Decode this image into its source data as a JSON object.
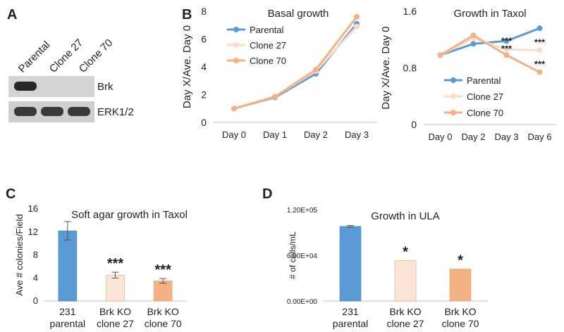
{
  "panels": {
    "A": "A",
    "B": "B",
    "C": "C",
    "D": "D"
  },
  "blot": {
    "lanes": [
      "Parental",
      "Clone 27",
      "Clone 70"
    ],
    "rows": [
      {
        "label": "Brk",
        "intensity": [
          1,
          0,
          0
        ]
      },
      {
        "label": "ERK1/2",
        "intensity": [
          1,
          1,
          1
        ]
      }
    ]
  },
  "colors": {
    "parental": "#5b9bd5",
    "clone27": "#f9dccb",
    "clone70": "#f4b183",
    "axis": "#bfbfbf",
    "ink": "#222222"
  },
  "chart_data": [
    {
      "id": "basal",
      "type": "line",
      "title": "Basal growth",
      "ylabel": "Day X/Ave. Day 0",
      "categories": [
        "Day 0",
        "Day 1",
        "Day 2",
        "Day 3"
      ],
      "ylim": [
        0,
        8
      ],
      "yticks": [
        0,
        2,
        4,
        6,
        8
      ],
      "ytick_labels": [
        "0",
        "2",
        "4",
        "6",
        "8"
      ],
      "series": [
        {
          "name": "Parental",
          "color": "#5b9bd5",
          "values": [
            1.0,
            1.8,
            3.5,
            7.1
          ]
        },
        {
          "name": "Clone 27",
          "color": "#f9dccb",
          "values": [
            1.0,
            1.85,
            3.7,
            6.9
          ]
        },
        {
          "name": "Clone 70",
          "color": "#f4b183",
          "values": [
            1.0,
            1.85,
            3.8,
            7.6
          ]
        }
      ],
      "legend": "top-left"
    },
    {
      "id": "taxol",
      "type": "line",
      "title": "Growth in Taxol",
      "ylabel": "Day X/Ave. Day 0",
      "categories": [
        "Day 0",
        "Day 2",
        "Day 3",
        "Day 6"
      ],
      "ylim": [
        0,
        1.6
      ],
      "yticks": [
        0,
        0.8,
        1.6
      ],
      "ytick_labels": [
        "0",
        "0.8",
        "1.6"
      ],
      "series": [
        {
          "name": "Parental",
          "color": "#5b9bd5",
          "values": [
            0.98,
            1.14,
            1.18,
            1.36
          ]
        },
        {
          "name": "Clone 27",
          "color": "#f9dccb",
          "values": [
            0.98,
            1.22,
            1.06,
            1.05
          ]
        },
        {
          "name": "Clone 70",
          "color": "#f4b183",
          "values": [
            0.98,
            1.26,
            0.98,
            0.74
          ]
        }
      ],
      "annotations": [
        {
          "text": "***",
          "category": 2,
          "y": 1.14
        },
        {
          "text": "***",
          "category": 2,
          "y": 1.03
        },
        {
          "text": "***",
          "category": 3,
          "y": 1.12
        },
        {
          "text": "***",
          "category": 3,
          "y": 0.81
        }
      ],
      "legend": "bottom-left"
    },
    {
      "id": "softagar",
      "type": "bar",
      "title": "Soft agar growth in Taxol",
      "ylabel": "Ave # colonies/Field",
      "categories": [
        "231 parental",
        "Brk KO clone 27",
        "Brk KO clone 70"
      ],
      "category_lines": [
        [
          "231",
          "parental"
        ],
        [
          "Brk KO",
          "clone 27"
        ],
        [
          "Brk KO",
          "clone 70"
        ]
      ],
      "values": [
        12.2,
        4.5,
        3.5
      ],
      "errors": [
        1.6,
        0.5,
        0.4
      ],
      "colors": [
        "#5b9bd5",
        "#fbe5d6",
        "#f4b183"
      ],
      "significance": [
        "",
        "***",
        "***"
      ],
      "ylim": [
        0,
        16
      ],
      "yticks": [
        0,
        4,
        8,
        12,
        16
      ],
      "ytick_labels": [
        "0",
        "4",
        "8",
        "12",
        "16"
      ]
    },
    {
      "id": "ula",
      "type": "bar",
      "title": "Growth in ULA",
      "ylabel": "# of cells/mL",
      "categories": [
        "231 parental",
        "Brk KO clone 27",
        "Brk KO clone 70"
      ],
      "category_lines": [
        [
          "231",
          "parental"
        ],
        [
          "Brk KO",
          "clone 27"
        ],
        [
          "Brk KO",
          "clone 70"
        ]
      ],
      "values": [
        98000,
        53000,
        42000
      ],
      "errors": [
        1200,
        0,
        0
      ],
      "colors": [
        "#5b9bd5",
        "#fbe5d6",
        "#f4b183"
      ],
      "significance": [
        "",
        "*",
        "*"
      ],
      "ylim": [
        0,
        120000
      ],
      "yticks": [
        0,
        60000,
        120000
      ],
      "ytick_labels": [
        "0.00E+00",
        "6.00E+04",
        "1.20E+05"
      ]
    }
  ]
}
